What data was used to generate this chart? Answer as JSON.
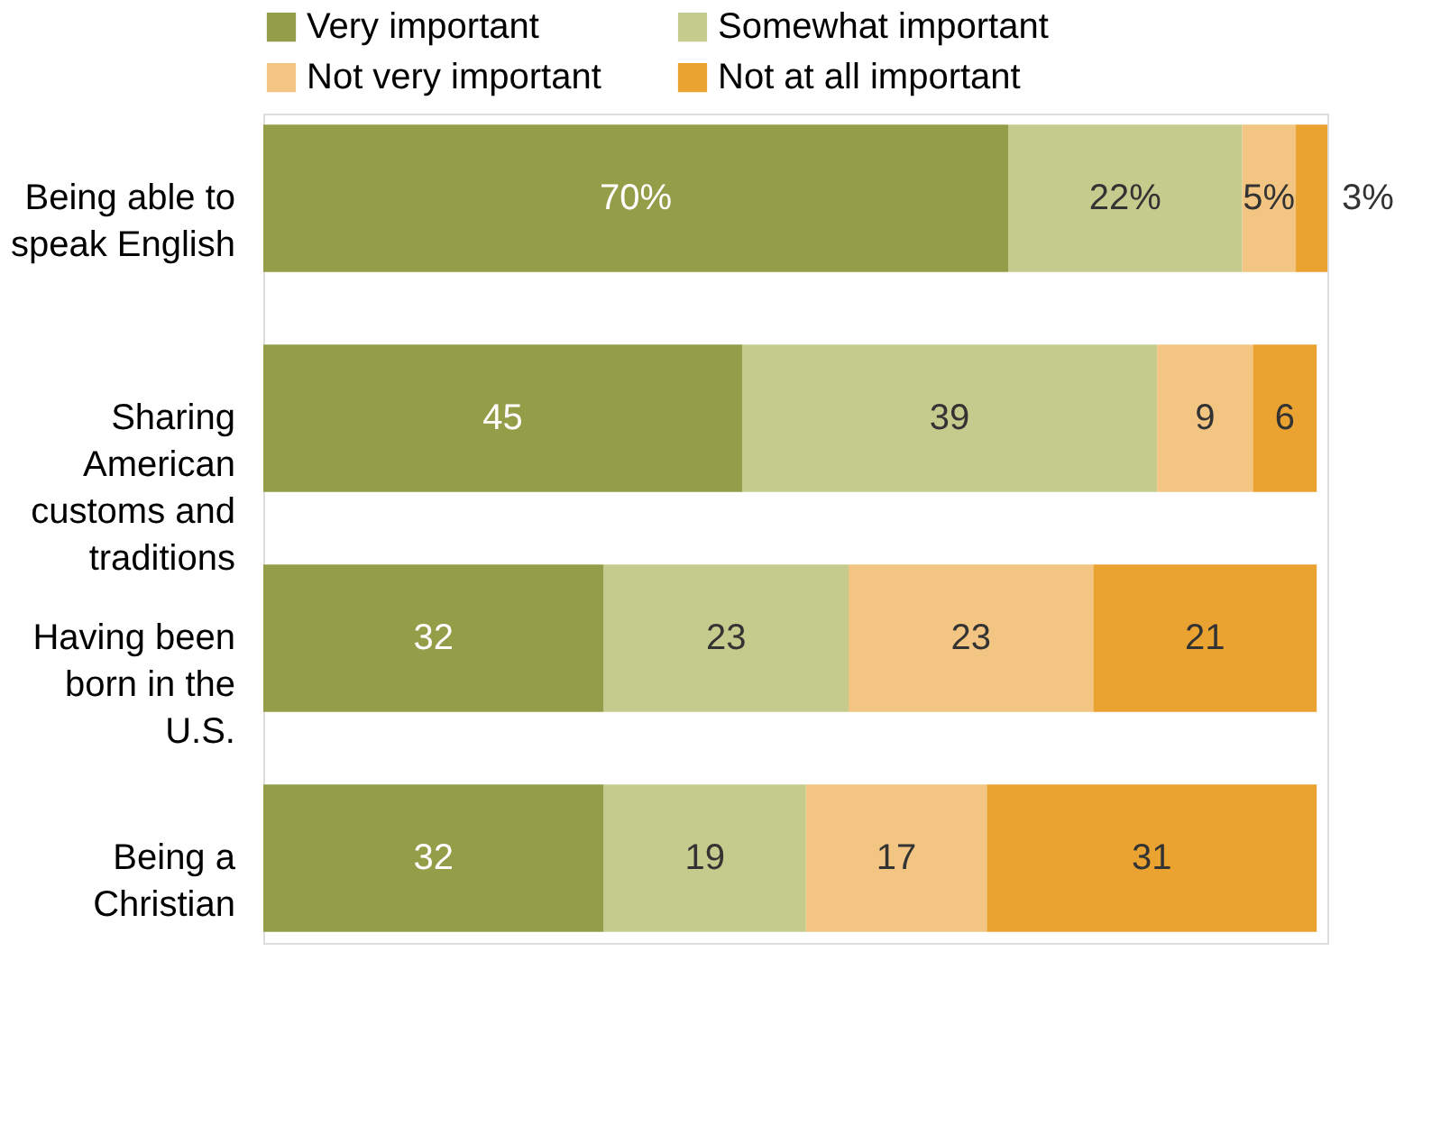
{
  "chart_data": {
    "type": "bar",
    "orientation": "horizontal",
    "stacked": true,
    "legend": "top",
    "tick_labels": "y",
    "grid": false,
    "categories": [
      "Being able to speak English",
      "Sharing American customs and traditions",
      "Having been born in the U.S.",
      "Being a Christian"
    ],
    "series": [
      {
        "name": "Very important",
        "color": "#949d48",
        "values": [
          70,
          45,
          32,
          32
        ],
        "value_labels": [
          "70%",
          "45",
          "32",
          "32"
        ]
      },
      {
        "name": "Somewhat important",
        "color": "#c5cb8d",
        "values": [
          22,
          39,
          23,
          19
        ],
        "value_labels": [
          "22%",
          "39",
          "23",
          "19"
        ]
      },
      {
        "name": "Not very important",
        "color": "#f2c682",
        "values": [
          5,
          9,
          23,
          17
        ],
        "value_labels": [
          "5%",
          "9",
          "23",
          "17"
        ]
      },
      {
        "name": "Not at all important",
        "color": "#eaa231",
        "values": [
          3,
          6,
          21,
          31
        ],
        "value_labels": [
          "3%",
          "6",
          "21",
          "31"
        ]
      }
    ]
  }
}
